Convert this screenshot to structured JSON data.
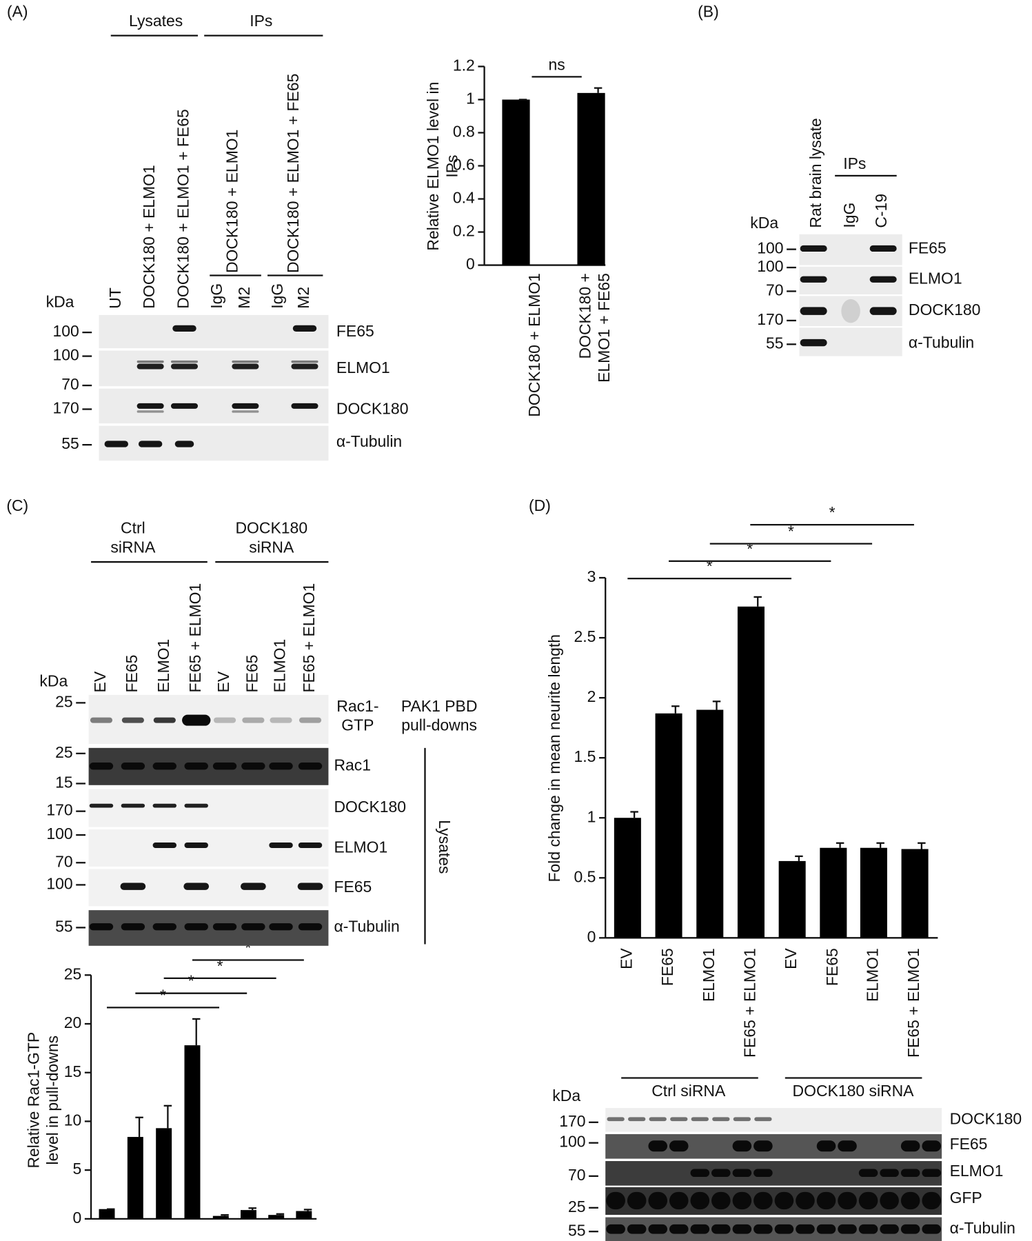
{
  "panel_labels": [
    "(A)",
    "(B)",
    "(C)",
    "(D)"
  ],
  "chart_data": [
    {
      "type": "bar",
      "ylabel": "Relative ELMO1 level in IPs",
      "categories": [
        "DOCK180 + ELMO1",
        "DOCK180 + ELMO1 + FE65"
      ],
      "values": [
        1,
        1.04
      ],
      "errors": [
        0,
        0.03
      ],
      "color": "#000000",
      "ylim": [
        0,
        1.2
      ],
      "yticks": [
        0,
        0.2,
        0.4,
        0.6,
        0.8,
        1,
        1.2
      ],
      "grid": false,
      "annotations": [
        "ns"
      ]
    },
    {
      "type": "bar",
      "ylabel": "Relative Rac1-GTP level in pull-downs",
      "categories": [
        "EV",
        "FE65",
        "ELMO1",
        "FE65 + ELMO1",
        "EV",
        "FE65",
        "ELMO1",
        "FE65 + ELMO1"
      ],
      "values": [
        1,
        8.4,
        9.3,
        17.8,
        0.3,
        0.9,
        0.4,
        0.8
      ],
      "errors": [
        0,
        2.0,
        2.3,
        2.7,
        0.1,
        0.2,
        0.1,
        0.15
      ],
      "color": "#000000",
      "ylim": [
        0,
        25
      ],
      "yticks": [
        0,
        5,
        10,
        15,
        20,
        25
      ],
      "grid": false,
      "annotations": [
        "*",
        "*",
        "*",
        "*"
      ]
    },
    {
      "type": "bar",
      "ylabel": "Fold change in mean neurite length",
      "categories": [
        "EV",
        "FE65",
        "ELMO1",
        "FE65 + ELMO1",
        "EV",
        "FE65",
        "ELMO1",
        "FE65 + ELMO1"
      ],
      "values": [
        1.0,
        1.87,
        1.9,
        2.76,
        0.64,
        0.75,
        0.75,
        0.74
      ],
      "errors": [
        0.05,
        0.06,
        0.07,
        0.08,
        0.04,
        0.04,
        0.04,
        0.05
      ],
      "color": "#000000",
      "ylim": [
        0,
        3
      ],
      "yticks": [
        0,
        0.5,
        1,
        1.5,
        2,
        2.5,
        3
      ],
      "grid": false,
      "annotations": [
        "*",
        "*",
        "*",
        "*"
      ]
    }
  ],
  "blots": {
    "a": {
      "groups": [
        "Lysates",
        "IPs"
      ],
      "lanes": [
        "UT",
        "DOCK180 + ELMO1",
        "DOCK180 + ELMO1 + FE65",
        "IgG",
        "M2",
        "IgG",
        "M2"
      ],
      "ip_conditions": [
        "DOCK180 + ELMO1",
        "DOCK180 + ELMO1 + FE65"
      ],
      "unit": "kDa",
      "markers": [
        100,
        100,
        70,
        170,
        55
      ],
      "rows": [
        "FE65",
        "ELMO1",
        "DOCK180",
        "α-Tubulin"
      ]
    },
    "b": {
      "group": "IPs",
      "lanes": [
        "Rat brain lysate",
        "IgG",
        "C-19"
      ],
      "unit": "kDa",
      "markers": [
        100,
        100,
        70,
        170,
        55
      ],
      "rows": [
        "FE65",
        "ELMO1",
        "DOCK180",
        "α-Tubulin"
      ]
    },
    "c": {
      "groups": [
        "Ctrl siRNA",
        "DOCK180 siRNA"
      ],
      "unit": "kDa",
      "markers": [
        25,
        25,
        15,
        170,
        100,
        70,
        100,
        55
      ],
      "rows": [
        "Rac1-GTP",
        "Rac1",
        "DOCK180",
        "ELMO1",
        "FE65",
        "α-Tubulin"
      ],
      "pulldown_note": "PAK1 PBD pull-downs",
      "side_label": "Lysates"
    },
    "d": {
      "groups": [
        "Ctrl siRNA",
        "DOCK180 siRNA"
      ],
      "unit": "kDa",
      "markers": [
        170,
        100,
        70,
        25,
        55
      ],
      "rows": [
        "DOCK180",
        "FE65",
        "ELMO1",
        "GFP",
        "α-Tubulin"
      ]
    }
  }
}
